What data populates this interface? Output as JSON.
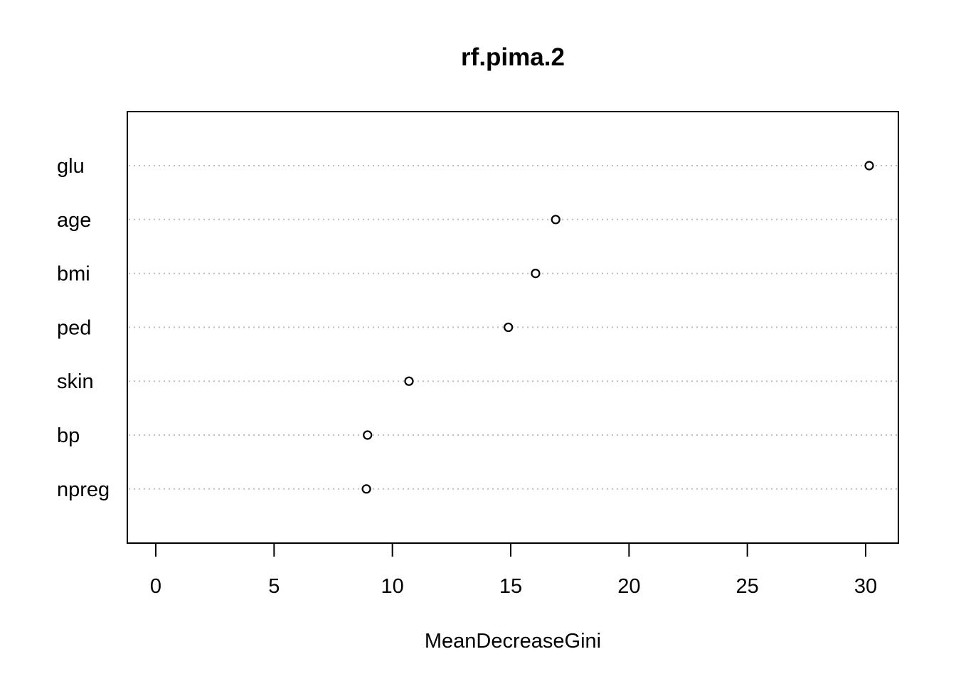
{
  "chart_data": {
    "type": "scatter",
    "subtype": "dotchart",
    "title": "rf.pima.2",
    "xlabel": "MeanDecreaseGini",
    "ylabel": "",
    "xlim": [
      0,
      30
    ],
    "xticks": [
      "0",
      "5",
      "10",
      "15",
      "20",
      "25",
      "30"
    ],
    "grid": "dotted horizontal guide lines",
    "categories": [
      "glu",
      "age",
      "bmi",
      "ped",
      "skin",
      "bp",
      "npreg"
    ],
    "values": [
      30.15,
      16.9,
      16.05,
      14.9,
      10.7,
      8.95,
      8.9
    ]
  }
}
